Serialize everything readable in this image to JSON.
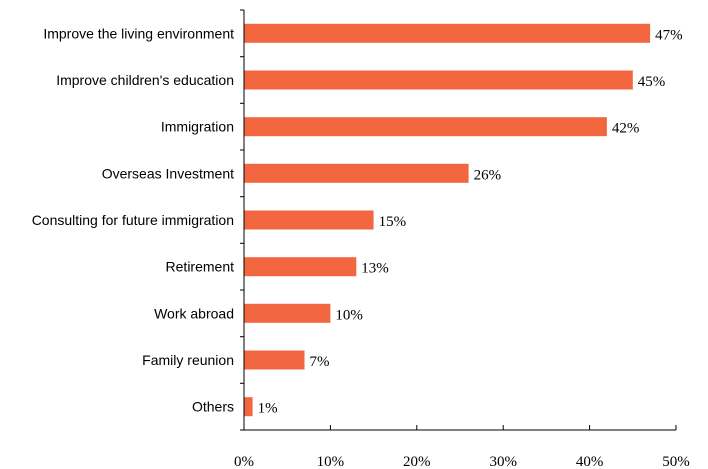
{
  "chart_data": {
    "type": "bar",
    "orientation": "horizontal",
    "title": "",
    "xlabel": "",
    "ylabel": "",
    "categories": [
      "Improve the living environment",
      "Improve children's education",
      "Immigration",
      "Overseas Investment",
      "Consulting for future immigration",
      "Retirement",
      "Work abroad",
      "Family reunion",
      "Others"
    ],
    "values": [
      47,
      45,
      42,
      26,
      15,
      13,
      10,
      7,
      1
    ],
    "value_labels": [
      "47%",
      "45%",
      "42%",
      "26%",
      "15%",
      "13%",
      "10%",
      "7%",
      "1%"
    ],
    "xlim": [
      0,
      50
    ],
    "x_ticks": [
      0,
      10,
      20,
      30,
      40,
      50
    ],
    "x_tick_labels": [
      "0%",
      "10%",
      "20%",
      "30%",
      "40%",
      "50%"
    ],
    "bar_color": "#f26640",
    "grid": false,
    "legend": "none"
  }
}
